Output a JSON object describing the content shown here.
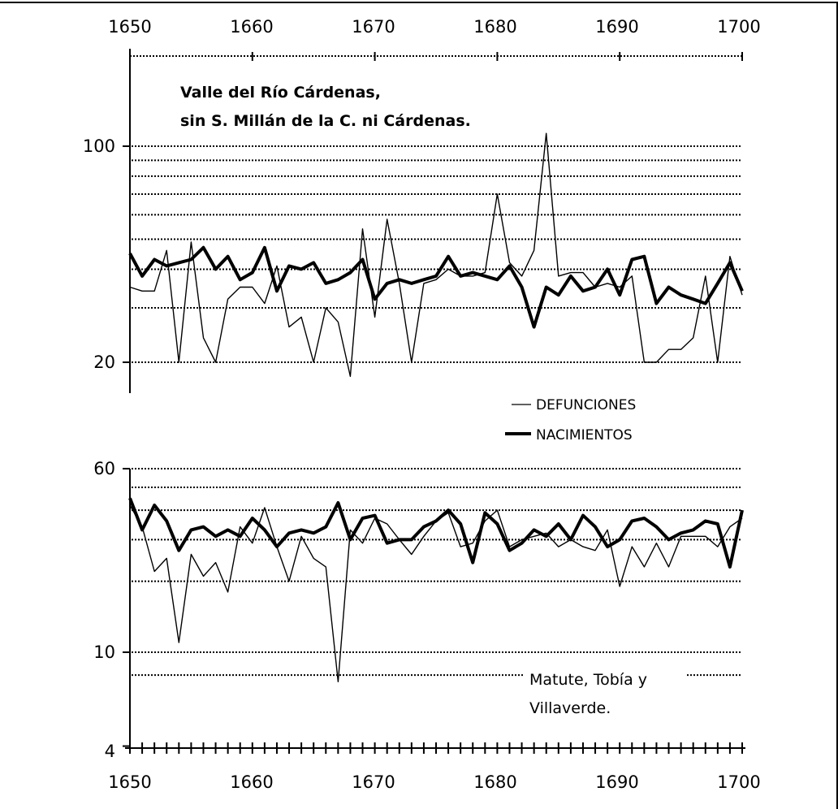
{
  "chart_data": [
    {
      "type": "line",
      "title_lines": [
        "Valle del Río Cárdenas,",
        "sin S. Millán de la C. ni Cárdenas."
      ],
      "xlim": [
        1650,
        1700
      ],
      "x_ticks": [
        "1650",
        "1660",
        "1670",
        "1680",
        "1690",
        "1700"
      ],
      "y_scale": "log",
      "ylim": [
        15,
        130
      ],
      "y_tick_labels": [
        {
          "value": 100,
          "label": "100"
        },
        {
          "value": 20,
          "label": "20"
        }
      ],
      "grid_values": [
        20,
        30,
        40,
        50,
        60,
        70,
        80,
        90,
        100
      ],
      "x": [
        1650,
        1651,
        1652,
        1653,
        1654,
        1655,
        1656,
        1657,
        1658,
        1659,
        1660,
        1661,
        1662,
        1663,
        1664,
        1665,
        1666,
        1667,
        1668,
        1669,
        1670,
        1671,
        1672,
        1673,
        1674,
        1675,
        1676,
        1677,
        1678,
        1679,
        1680,
        1681,
        1682,
        1683,
        1684,
        1685,
        1686,
        1687,
        1688,
        1689,
        1690,
        1691,
        1692,
        1693,
        1694,
        1695,
        1696,
        1697,
        1698,
        1699,
        1700
      ],
      "series": [
        {
          "name": "DEFUNCIONES",
          "style": "thin",
          "values": [
            35,
            34,
            34,
            46,
            20,
            49,
            24,
            20,
            32,
            35,
            35,
            31,
            41,
            26,
            28,
            20,
            30,
            27,
            18,
            54,
            28,
            58,
            36,
            20,
            36,
            37,
            40,
            38,
            38,
            39,
            70,
            42,
            38,
            46,
            110,
            38,
            39,
            39,
            35,
            36,
            35,
            38,
            20,
            20,
            22,
            22,
            24,
            38,
            20,
            44,
            33
          ]
        },
        {
          "name": "NACIMIENTOS",
          "style": "thick",
          "values": [
            45,
            38,
            43,
            41,
            42,
            43,
            47,
            40,
            44,
            37,
            39,
            47,
            34,
            41,
            40,
            42,
            36,
            37,
            39,
            43,
            32,
            36,
            37,
            36,
            37,
            38,
            44,
            38,
            39,
            38,
            37,
            41,
            35,
            26,
            35,
            33,
            38,
            34,
            35,
            40,
            33,
            43,
            44,
            31,
            35,
            33,
            32,
            31,
            36,
            42,
            34
          ]
        }
      ]
    },
    {
      "type": "line",
      "title_lines": [
        "Matute, Tobía y",
        "Villaverde."
      ],
      "xlim": [
        1650,
        1700
      ],
      "x_ticks": [
        "1650",
        "1660",
        "1670",
        "1680",
        "1690",
        "1700"
      ],
      "y_scale": "log",
      "ylim": [
        4,
        60
      ],
      "y_tick_labels": [
        {
          "value": 60,
          "label": "60"
        },
        {
          "value": 10,
          "label": "10"
        },
        {
          "value": 4,
          "label": "4"
        }
      ],
      "grid_values": [
        8,
        10,
        20,
        30,
        40,
        50,
        60
      ],
      "x": [
        1650,
        1651,
        1652,
        1653,
        1654,
        1655,
        1656,
        1657,
        1658,
        1659,
        1660,
        1661,
        1662,
        1663,
        1664,
        1665,
        1666,
        1667,
        1668,
        1669,
        1670,
        1671,
        1672,
        1673,
        1674,
        1675,
        1676,
        1677,
        1678,
        1679,
        1680,
        1681,
        1682,
        1683,
        1684,
        1685,
        1686,
        1687,
        1688,
        1689,
        1690,
        1691,
        1692,
        1693,
        1694,
        1695,
        1696,
        1697,
        1698,
        1699,
        1700
      ],
      "series": [
        {
          "name": "DEFUNCIONES",
          "style": "thin",
          "values": [
            42,
            34,
            22,
            25,
            11,
            26,
            21,
            24,
            18,
            34,
            29,
            41,
            28,
            20,
            31,
            25,
            23,
            7.5,
            33,
            29,
            37,
            35,
            30,
            26,
            31,
            36,
            39,
            28,
            29,
            36,
            40,
            28,
            30,
            31,
            32,
            28,
            30,
            28,
            27,
            33,
            19,
            28,
            23,
            29,
            23,
            31,
            31,
            31,
            28,
            34,
            37
          ]
        },
        {
          "name": "NACIMIENTOS",
          "style": "thick",
          "values": [
            45,
            33,
            42,
            36,
            27,
            33,
            34,
            31,
            33,
            31,
            37,
            33,
            28,
            32,
            33,
            32,
            34,
            43,
            30,
            37,
            38,
            29,
            30,
            30,
            34,
            36,
            40,
            35,
            24,
            39,
            35,
            27,
            29,
            33,
            31,
            35,
            30,
            38,
            34,
            28,
            30,
            36,
            37,
            34,
            30,
            32,
            33,
            36,
            35,
            23,
            40
          ]
        }
      ]
    }
  ],
  "legend": [
    {
      "label": "DEFUNCIONES",
      "style": "thin"
    },
    {
      "label": "NACIMIENTOS",
      "style": "thick"
    }
  ]
}
